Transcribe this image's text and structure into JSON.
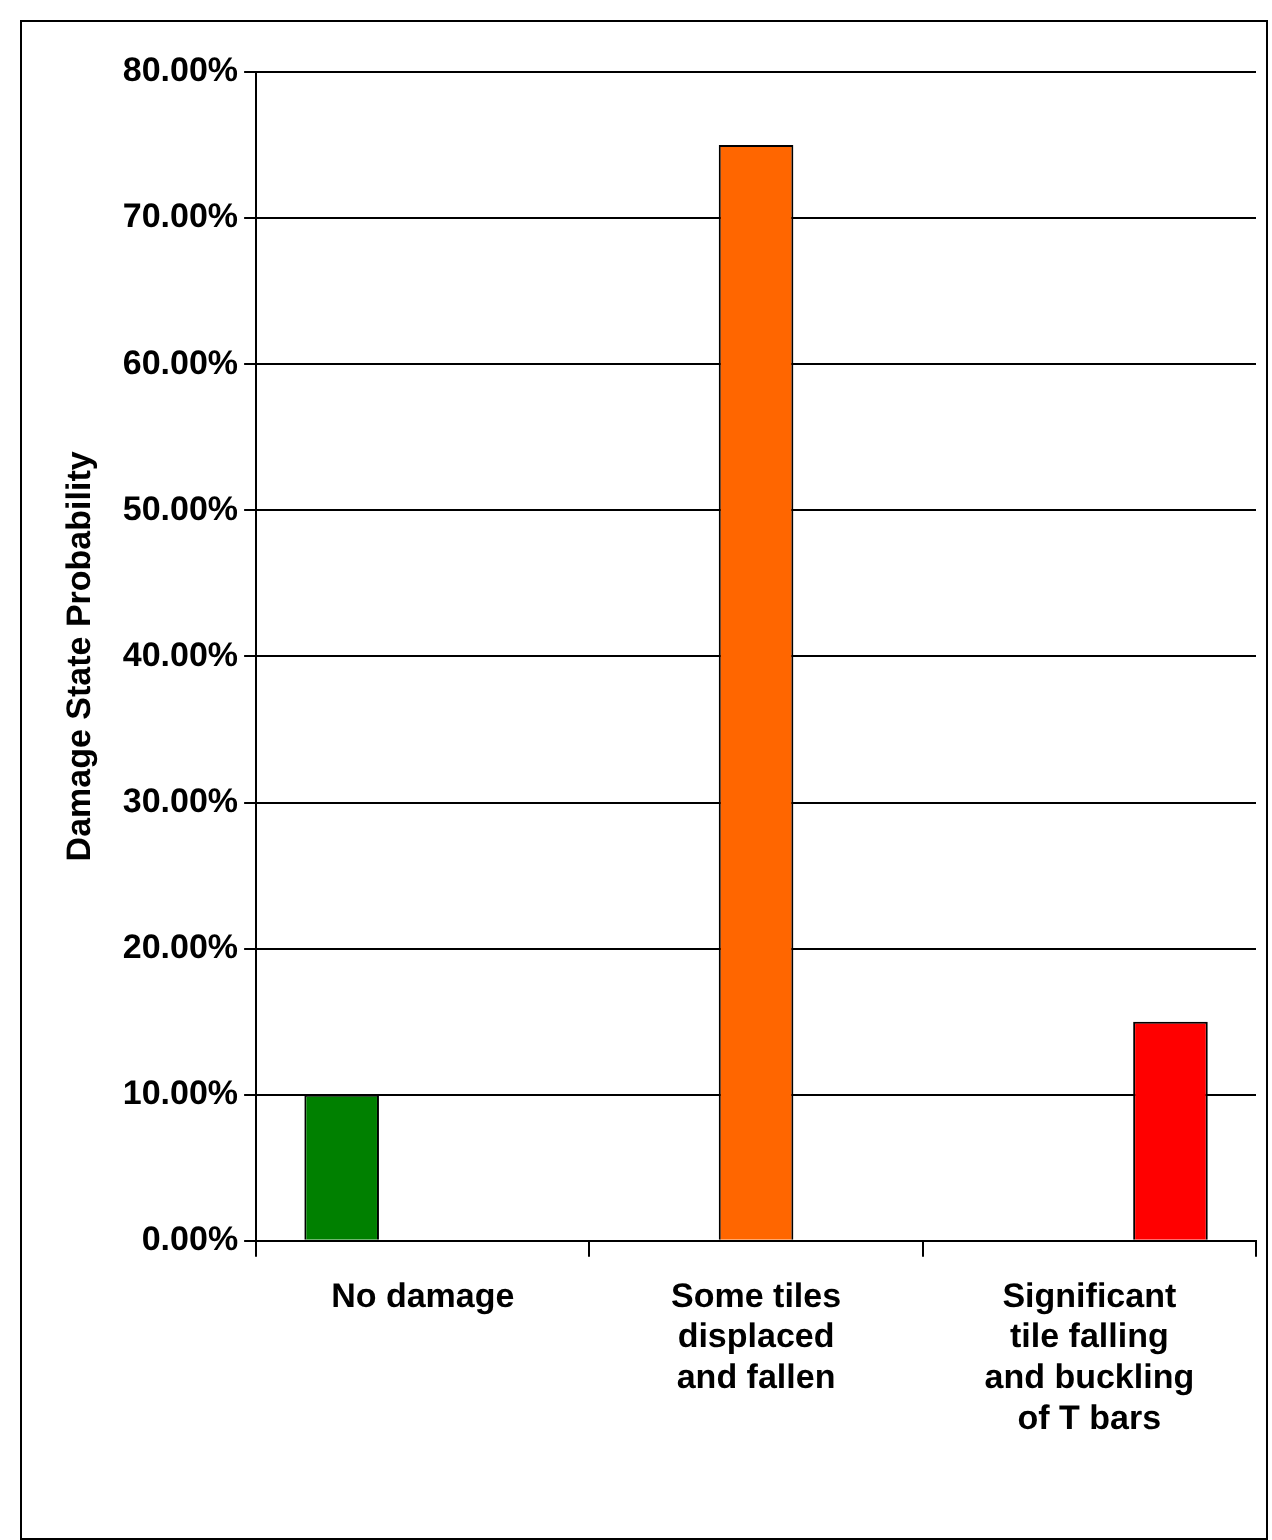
{
  "chart_data": {
    "type": "bar",
    "ylabel": "Damage State Probability",
    "categories": [
      "No damage",
      "Some tiles displaced and fallen",
      "Significant tile falling and buckling of T bars"
    ],
    "series": [
      {
        "color": "#008000",
        "values": [
          10,
          null,
          null
        ]
      },
      {
        "color": "#ff6600",
        "values": [
          null,
          75,
          null
        ]
      },
      {
        "color": "#ff0000",
        "values": [
          null,
          null,
          15
        ]
      }
    ],
    "ylim": [
      0,
      80
    ],
    "yticks": [
      {
        "value": 0,
        "label": "0.00%"
      },
      {
        "value": 10,
        "label": "10.00%"
      },
      {
        "value": 20,
        "label": "20.00%"
      },
      {
        "value": 30,
        "label": "30.00%"
      },
      {
        "value": 40,
        "label": "40.00%"
      },
      {
        "value": 50,
        "label": "50.00%"
      },
      {
        "value": 60,
        "label": "60.00%"
      },
      {
        "value": 70,
        "label": "70.00%"
      },
      {
        "value": 80,
        "label": "80.00%"
      }
    ],
    "grid": "y",
    "legend": false
  }
}
